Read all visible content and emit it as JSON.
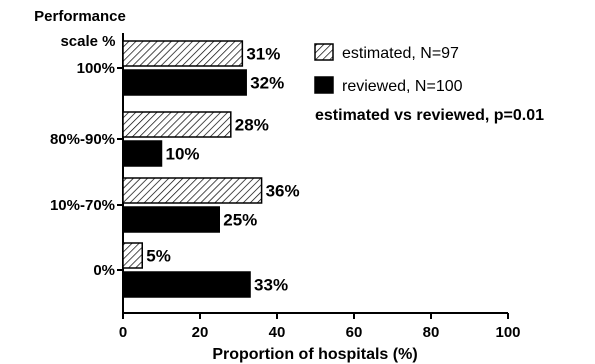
{
  "chart_data": {
    "type": "bar",
    "orientation": "horizontal",
    "title": "",
    "ylabel": "Performance\nscale %",
    "xlabel": "Proportion of hospitals (%)",
    "categories": [
      "100%",
      "80%-90%",
      "10%-70%",
      "0%"
    ],
    "series": [
      {
        "name": "estimated, N=97",
        "values": [
          31,
          28,
          36,
          5
        ],
        "value_labels": [
          "31%",
          "28%",
          "36%",
          "5%"
        ],
        "fill": "hatched"
      },
      {
        "name": "reviewed, N=100",
        "values": [
          32,
          10,
          25,
          33
        ],
        "value_labels": [
          "32%",
          "10%",
          "25%",
          "33%"
        ],
        "fill": "solid"
      }
    ],
    "xlim": [
      0,
      100
    ],
    "xticks": [
      0,
      20,
      40,
      60,
      80,
      100
    ],
    "xtick_labels": [
      "0",
      "20",
      "40",
      "60",
      "80",
      "100"
    ],
    "annotation": "estimated vs reviewed, p=0.01",
    "legend_position": "top-right",
    "grid": false,
    "colors": {
      "bar": "#000000",
      "text": "#000000",
      "background": "#ffffff"
    }
  }
}
